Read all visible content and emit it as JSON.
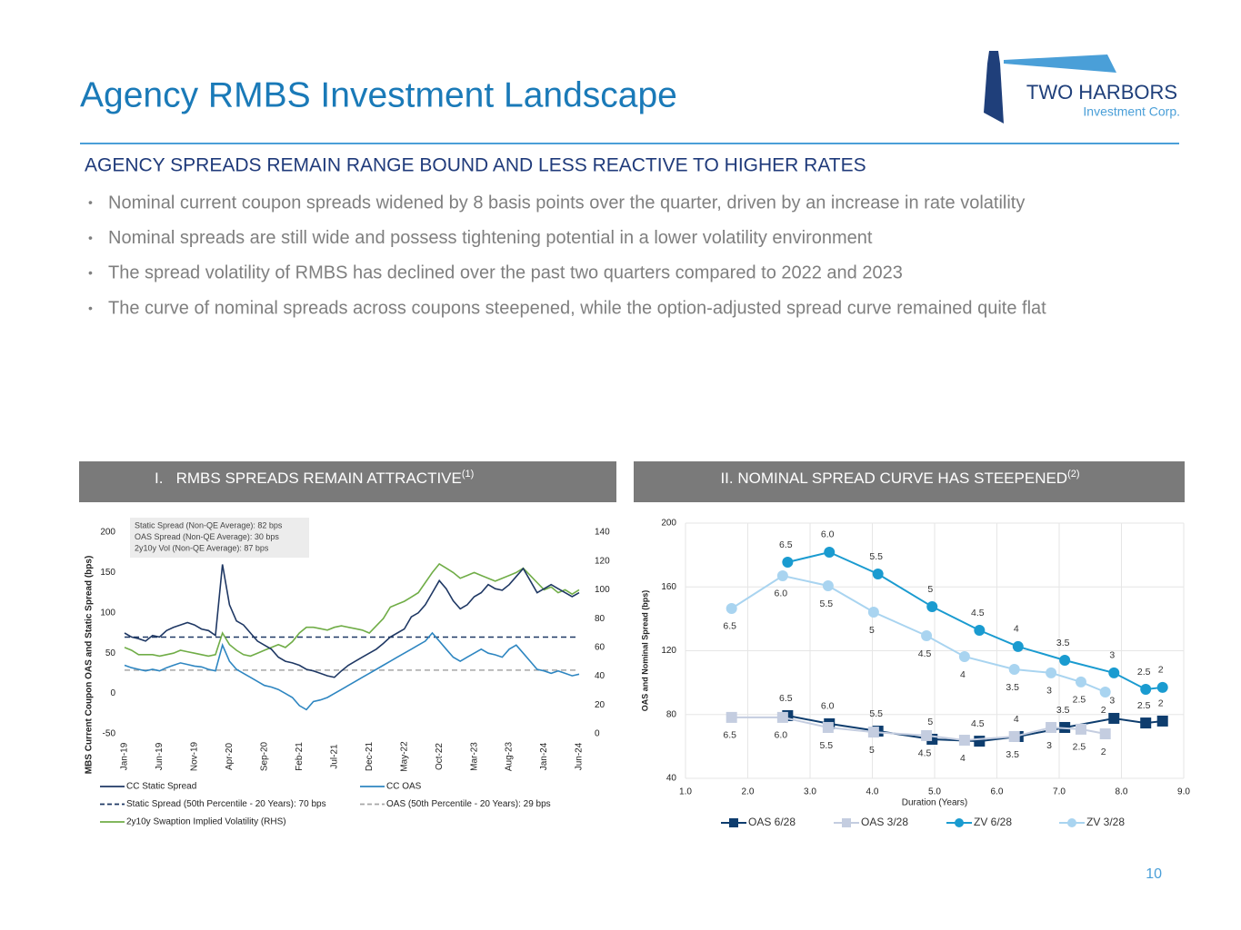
{
  "header": {
    "title": "Agency RMBS Investment Landscape",
    "logo_name": "TWO HARBORS",
    "logo_sub": "Investment Corp."
  },
  "subtitle": "AGENCY SPREADS REMAIN RANGE BOUND AND LESS REACTIVE TO HIGHER RATES",
  "bullets": [
    "Nominal current coupon spreads widened by 8 basis points over the quarter, driven by an increase in rate volatility",
    "Nominal spreads are still wide and possess tightening potential in a lower volatility environment",
    "The spread volatility of RMBS has declined over the past two quarters compared to 2022 and 2023",
    "The curve of nominal spreads across coupons steepened, while the option-adjusted spread curve remained quite flat"
  ],
  "chart_data": [
    {
      "type": "line",
      "title": "I.   RMBS SPREADS REMAIN ATTRACTIVE",
      "title_note": "(1)",
      "y_label": "MBS Current Coupon OAS and Static Spread (bps)",
      "categories": [
        "Jan-19",
        null,
        null,
        null,
        null,
        "Jun-19",
        null,
        null,
        null,
        null,
        "Nov-19",
        null,
        null,
        null,
        null,
        "Apr-20",
        null,
        null,
        null,
        null,
        "Sep-20",
        null,
        null,
        null,
        null,
        "Feb-21",
        null,
        null,
        null,
        null,
        "Jul-21",
        null,
        null,
        null,
        null,
        "Dec-21",
        null,
        null,
        null,
        null,
        "May-22",
        null,
        null,
        null,
        null,
        "Oct-22",
        null,
        null,
        null,
        null,
        "Mar-23",
        null,
        null,
        null,
        null,
        "Aug-23",
        null,
        null,
        null,
        null,
        "Jan-24",
        null,
        null,
        null,
        null,
        "Jun-24"
      ],
      "series": [
        {
          "name": "CC Static Spread",
          "color": "#1f3864",
          "values": [
            75,
            70,
            68,
            65,
            72,
            70,
            78,
            82,
            85,
            88,
            85,
            80,
            78,
            72,
            160,
            110,
            90,
            85,
            75,
            65,
            60,
            55,
            45,
            40,
            38,
            35,
            30,
            28,
            25,
            22,
            20,
            28,
            35,
            40,
            45,
            50,
            55,
            62,
            70,
            75,
            80,
            95,
            100,
            110,
            125,
            140,
            130,
            115,
            105,
            110,
            120,
            125,
            135,
            130,
            128,
            135,
            145,
            155,
            140,
            125,
            130,
            135,
            130,
            125,
            120,
            125
          ]
        },
        {
          "name": "CC OAS",
          "color": "#2e86c1",
          "values": [
            35,
            32,
            30,
            28,
            30,
            28,
            32,
            35,
            38,
            36,
            34,
            33,
            30,
            28,
            60,
            40,
            30,
            25,
            20,
            15,
            10,
            8,
            5,
            0,
            -5,
            -15,
            -20,
            -10,
            -8,
            -5,
            0,
            5,
            10,
            15,
            20,
            25,
            30,
            35,
            40,
            45,
            50,
            55,
            60,
            65,
            75,
            65,
            55,
            45,
            40,
            45,
            50,
            55,
            50,
            48,
            45,
            55,
            60,
            50,
            40,
            30,
            28,
            25,
            28,
            25,
            22,
            24
          ]
        },
        {
          "name": "2y10y Swaption Implied Volatility (RHS)",
          "color": "#70ad47",
          "axis": "y2",
          "values": [
            60,
            58,
            55,
            55,
            55,
            54,
            55,
            56,
            58,
            57,
            56,
            55,
            54,
            55,
            70,
            62,
            58,
            55,
            54,
            56,
            58,
            60,
            62,
            60,
            64,
            70,
            74,
            74,
            73,
            72,
            74,
            75,
            74,
            73,
            72,
            70,
            75,
            80,
            88,
            90,
            92,
            95,
            98,
            105,
            112,
            118,
            115,
            112,
            108,
            110,
            112,
            110,
            108,
            106,
            108,
            110,
            112,
            115,
            110,
            105,
            100,
            102,
            98,
            100,
            97,
            100
          ]
        }
      ],
      "reference_lines": [
        {
          "name": "Static Spread (50th Percentile - 20 Years): 70 bps",
          "value": 70,
          "color": "#1f3864"
        },
        {
          "name": "OAS (50th Percentile - 20 Years): 29 bps",
          "value": 29,
          "color": "#a6a6a6"
        }
      ],
      "annotation": [
        "Static Spread (Non-QE Average): 82 bps",
        "OAS Spread (Non-QE Average): 30 bps",
        "2y10y Vol (Non-QE Average): 87 bps"
      ],
      "ylim": [
        -50,
        200
      ],
      "yticks": [
        -50,
        0,
        50,
        100,
        150,
        200
      ],
      "y2lim": [
        0,
        140
      ],
      "y2ticks": [
        0,
        20,
        40,
        60,
        80,
        100,
        120,
        140
      ]
    },
    {
      "type": "line",
      "title": "II. NOMINAL SPREAD CURVE HAS STEEPENED",
      "title_note": "(2)",
      "x_label": "Duration (Years)",
      "y_label": "OAS and Nominal Spread (bps)",
      "xlim": [
        1,
        9
      ],
      "xticks": [
        {
          "value": 1,
          "label": "1.0"
        },
        {
          "value": 2,
          "label": "2.0"
        },
        {
          "value": 3,
          "label": "3.0"
        },
        {
          "value": 4,
          "label": "4.0"
        },
        {
          "value": 5,
          "label": "5.0"
        },
        {
          "value": 6,
          "label": "6.0"
        },
        {
          "value": 7,
          "label": "7.0"
        },
        {
          "value": 8,
          "label": "8.0"
        },
        {
          "value": 9,
          "label": "9.0"
        }
      ],
      "ylim": [
        40,
        200
      ],
      "yticks": [
        40,
        80,
        120,
        160,
        200
      ],
      "grid": true,
      "series": [
        {
          "name": "OAS 6/28",
          "color": "#0e3d6e",
          "marker": "square",
          "labels_at": "above",
          "x": [
            2.64,
            3.31,
            4.09,
            4.96,
            5.72,
            6.34,
            7.09,
            7.88,
            8.39,
            8.66
          ],
          "values": [
            79.3,
            74.2,
            69.6,
            64.5,
            63.3,
            66.2,
            71.9,
            77.6,
            74.7,
            75.9
          ],
          "point_labels": [
            "6.5",
            "6.0",
            "5.5",
            "5",
            "4.5",
            "4",
            "3.5",
            "3",
            "2.5",
            "2"
          ]
        },
        {
          "name": "OAS 3/28",
          "color": "#c4cde0",
          "marker": "square",
          "labels_at": "below",
          "x": [
            1.74,
            2.56,
            3.29,
            4.02,
            4.87,
            5.48,
            6.28,
            6.87,
            7.35,
            7.74
          ],
          "values": [
            78.2,
            78.2,
            71.9,
            69.0,
            66.8,
            63.9,
            66.2,
            71.9,
            70.8,
            67.9
          ],
          "point_labels": [
            "6.5",
            "6.0",
            "5.5",
            "5",
            "4.5",
            "4",
            "3.5",
            "3",
            "2.5",
            "2"
          ]
        },
        {
          "name": "ZV 6/28",
          "color": "#1a9bd0",
          "marker": "circle",
          "labels_at": "above",
          "x": [
            2.64,
            3.31,
            4.09,
            4.96,
            5.72,
            6.34,
            7.09,
            7.88,
            8.39,
            8.66
          ],
          "values": [
            175.5,
            181.8,
            168.1,
            147.6,
            132.8,
            122.6,
            114.0,
            106.1,
            95.8,
            97.0
          ],
          "point_labels": [
            "6.5",
            "6.0",
            "5.5",
            "5",
            "4.5",
            "4",
            "3.5",
            "3",
            "2.5",
            "2"
          ]
        },
        {
          "name": "ZV 3/28",
          "color": "#a9d4f0",
          "marker": "circle",
          "labels_at": "below",
          "x": [
            1.74,
            2.56,
            3.29,
            4.02,
            4.87,
            5.48,
            6.28,
            6.87,
            7.35,
            7.74
          ],
          "values": [
            146.5,
            167.0,
            160.7,
            144.2,
            129.4,
            116.3,
            108.3,
            106.1,
            100.4,
            94.1
          ],
          "point_labels": [
            "6.5",
            "6.0",
            "5.5",
            "5",
            "4.5",
            "4",
            "3.5",
            "3",
            "2.5",
            "2"
          ]
        }
      ]
    }
  ],
  "page_number": "10"
}
